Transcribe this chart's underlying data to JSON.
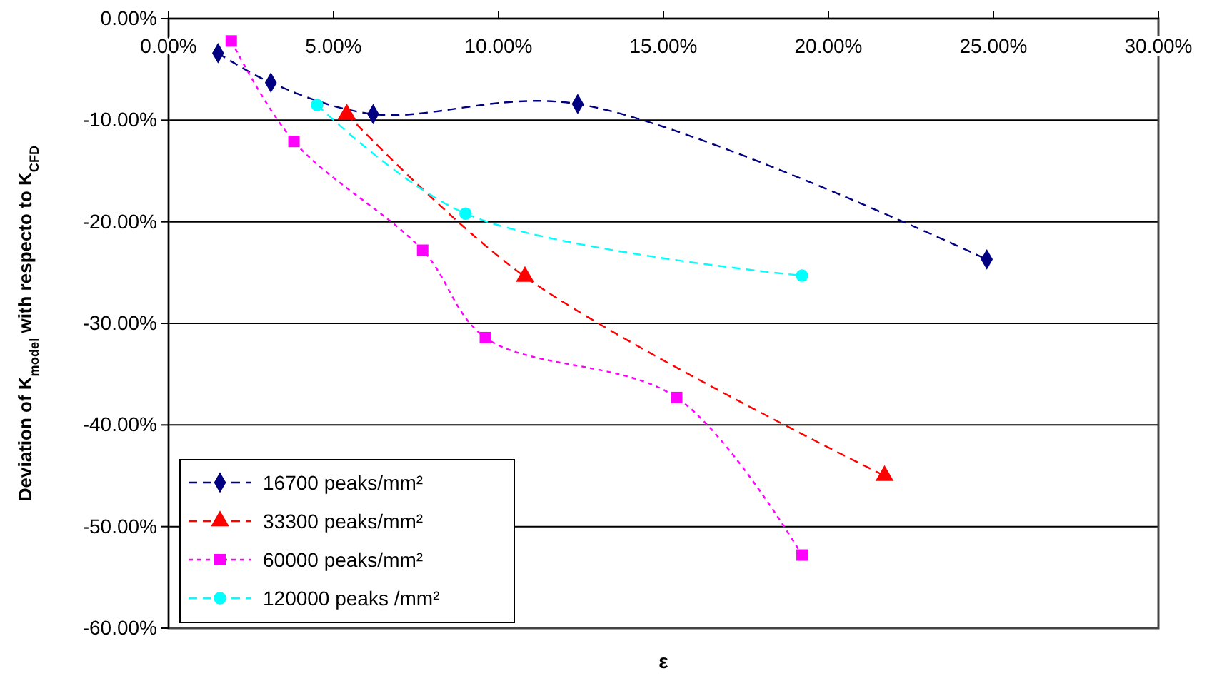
{
  "chart_data": {
    "type": "line",
    "xlabel": "ε",
    "ylabel": "Deviation of K$_{model}$ with respecto to K$_{CFD}$",
    "xlim": [
      0,
      30
    ],
    "ylim": [
      -60,
      0
    ],
    "xticks": [
      {
        "value": 0,
        "label": "0.00%"
      },
      {
        "value": 5,
        "label": "5.00%"
      },
      {
        "value": 10,
        "label": "10.00%"
      },
      {
        "value": 15,
        "label": "15.00%"
      },
      {
        "value": 20,
        "label": "20.00%"
      },
      {
        "value": 25,
        "label": "25.00%"
      },
      {
        "value": 30,
        "label": "30.00%"
      }
    ],
    "yticks": [
      {
        "value": -60,
        "label": "-60.00%"
      },
      {
        "value": -50,
        "label": "-50.00%"
      },
      {
        "value": -40,
        "label": "-40.00%"
      },
      {
        "value": -30,
        "label": "-30.00%"
      },
      {
        "value": -20,
        "label": "-20.00%"
      },
      {
        "value": -10,
        "label": "-10.00%"
      },
      {
        "value": 0,
        "label": "0.00%"
      }
    ],
    "grid": "y",
    "legend": "bottom left",
    "series": [
      {
        "name": "16700 peaks/mm²",
        "color": "#000080",
        "marker": "diamond",
        "line_style": "dashed",
        "x": [
          1.5,
          3.1,
          6.2,
          12.4,
          24.8
        ],
        "values": [
          -3.4,
          -6.3,
          -9.4,
          -8.4,
          -23.7
        ]
      },
      {
        "name": "33300 peaks/mm²",
        "color": "#ff0000",
        "marker": "triangle",
        "line_style": "dashed",
        "x": [
          5.4,
          10.8,
          21.7
        ],
        "values": [
          -9.4,
          -25.4,
          -45.0
        ]
      },
      {
        "name": "60000 peaks/mm²",
        "color": "#ff00ff",
        "marker": "square",
        "line_style": "dotted",
        "x": [
          1.9,
          3.8,
          7.7,
          9.6,
          15.4,
          19.2
        ],
        "values": [
          -2.2,
          -12.1,
          -22.8,
          -31.4,
          -37.3,
          -52.8
        ]
      },
      {
        "name": "120000 peaks /mm²",
        "color": "#00ffff",
        "marker": "circle",
        "line_style": "dashed",
        "x": [
          4.5,
          9.0,
          19.2
        ],
        "values": [
          -8.5,
          -19.2,
          -25.3
        ]
      }
    ]
  }
}
